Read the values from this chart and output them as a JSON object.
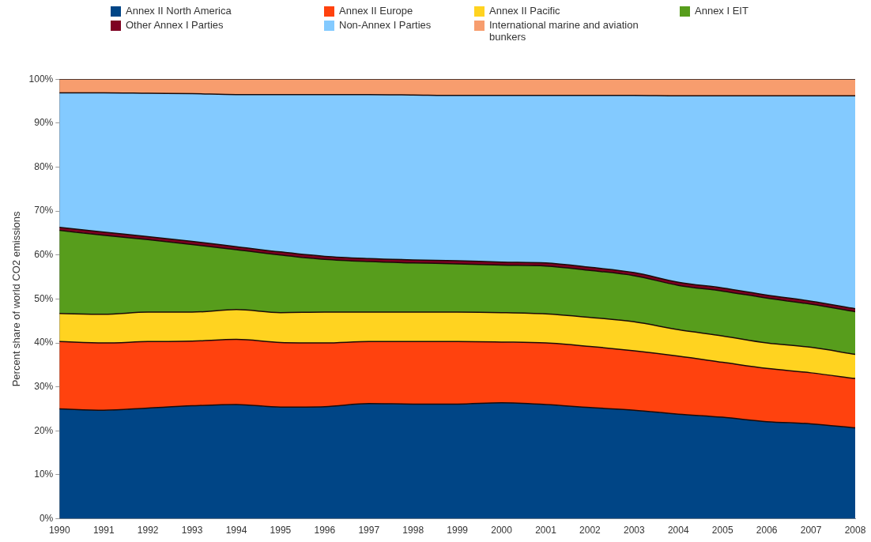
{
  "chart_data": {
    "type": "area",
    "stacked": true,
    "ylabel": "Percent share of world CO2 emissions",
    "legend": "top",
    "grid": false,
    "categories": [
      "1990",
      "1991",
      "1992",
      "1993",
      "1994",
      "1995",
      "1996",
      "1997",
      "1998",
      "1999",
      "2000",
      "2001",
      "2002",
      "2003",
      "2004",
      "2005",
      "2006",
      "2007",
      "2008"
    ],
    "ylim": [
      0,
      100
    ],
    "yticks": [
      {
        "value": 0,
        "label": "0%"
      },
      {
        "value": 10,
        "label": "10%"
      },
      {
        "value": 20,
        "label": "20%"
      },
      {
        "value": 30,
        "label": "30%"
      },
      {
        "value": 40,
        "label": "40%"
      },
      {
        "value": 50,
        "label": "50%"
      },
      {
        "value": 60,
        "label": "60%"
      },
      {
        "value": 70,
        "label": "70%"
      },
      {
        "value": 80,
        "label": "80%"
      },
      {
        "value": 90,
        "label": "90%"
      },
      {
        "value": 100,
        "label": "100%"
      }
    ],
    "series": [
      {
        "name": "Annex II North America",
        "color": "#004586",
        "values": [
          25,
          24.7,
          25.2,
          25.7,
          26,
          25.4,
          25.5,
          26.2,
          26.1,
          26.1,
          26.4,
          26,
          25.3,
          24.7,
          23.8,
          23.1,
          22.1,
          21.6,
          20.7
        ]
      },
      {
        "name": "Annex II Europe",
        "color": "#ff420e",
        "values": [
          15.3,
          15.3,
          15.1,
          14.7,
          14.8,
          14.7,
          14.5,
          14.1,
          14.2,
          14.2,
          13.8,
          14.0,
          13.9,
          13.5,
          13.2,
          12.5,
          12.1,
          11.6,
          11.2
        ]
      },
      {
        "name": "Annex II Pacific",
        "color": "#ffd320",
        "values": [
          6.4,
          6.5,
          6.7,
          6.6,
          6.8,
          6.8,
          7.0,
          6.7,
          6.7,
          6.7,
          6.7,
          6.6,
          6.6,
          6.6,
          6.0,
          6.0,
          5.8,
          5.8,
          5.5
        ]
      },
      {
        "name": "Annex I EIT",
        "color": "#579d1c",
        "values": [
          18.9,
          18.0,
          16.5,
          15.4,
          13.6,
          13.1,
          12.0,
          11.5,
          11.2,
          11.0,
          10.8,
          10.9,
          10.7,
          10.5,
          10.1,
          10.2,
          10.2,
          9.8,
          9.7
        ]
      },
      {
        "name": "Other Annex I Parties",
        "color": "#7e0021",
        "values": [
          0.7,
          0.7,
          0.7,
          0.7,
          0.7,
          0.7,
          0.7,
          0.7,
          0.7,
          0.7,
          0.7,
          0.7,
          0.7,
          0.7,
          0.7,
          0.7,
          0.7,
          0.7,
          0.7
        ]
      },
      {
        "name": "Non-Annex I Parties",
        "color": "#83caff",
        "values": [
          30.6,
          31.7,
          32.6,
          33.6,
          34.6,
          35.8,
          36.8,
          37.3,
          37.5,
          37.6,
          37.9,
          38.1,
          39.1,
          40.3,
          42.4,
          43.7,
          45.3,
          46.7,
          48.4
        ]
      },
      {
        "name": "International marine and aviation bunkers",
        "color": "#f79d6e",
        "values": [
          3.1,
          3.1,
          3.2,
          3.3,
          3.5,
          3.5,
          3.5,
          3.5,
          3.6,
          3.7,
          3.7,
          3.7,
          3.7,
          3.7,
          3.8,
          3.8,
          3.8,
          3.8,
          3.8
        ]
      }
    ]
  }
}
